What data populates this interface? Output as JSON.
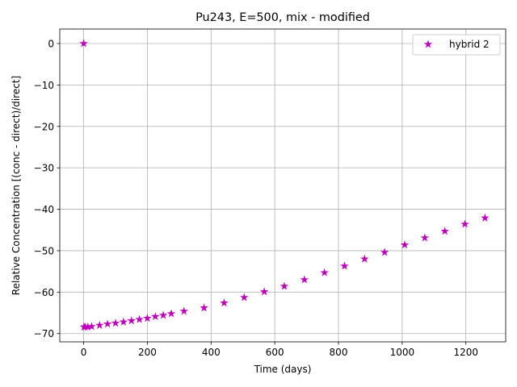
{
  "chart_data": {
    "type": "scatter",
    "title": "Pu243, E=500, mix - modified",
    "xlabel": "Time (days)",
    "ylabel": "Relative Concentration [(conc - direct)/direct]",
    "xlim": [
      -75,
      1325
    ],
    "ylim": [
      -72,
      3.5
    ],
    "xticks": [
      0,
      200,
      400,
      600,
      800,
      1000,
      1200
    ],
    "yticks": [
      0,
      -10,
      -20,
      -30,
      -40,
      -50,
      -60,
      -70
    ],
    "xtick_labels": [
      "0",
      "200",
      "400",
      "600",
      "800",
      "1000",
      "1200"
    ],
    "ytick_labels": [
      "0",
      "−10",
      "−20",
      "−30",
      "−40",
      "−50",
      "−60",
      "−70"
    ],
    "grid": true,
    "legend_position": "top-right",
    "series": [
      {
        "name": "hybrid 2",
        "color": "#bf00bf",
        "marker": "star",
        "x": [
          0,
          1,
          5,
          13,
          25,
          50,
          75,
          100,
          125,
          150,
          175,
          200,
          225,
          250,
          275,
          315,
          378,
          441,
          504,
          567,
          630,
          693,
          756,
          819,
          882,
          945,
          1008,
          1071,
          1134,
          1197,
          1260
        ],
        "y": [
          0,
          -68.4,
          -68.4,
          -68.4,
          -68.3,
          -68.0,
          -67.7,
          -67.5,
          -67.2,
          -66.9,
          -66.6,
          -66.3,
          -65.9,
          -65.6,
          -65.2,
          -64.6,
          -63.8,
          -62.6,
          -61.3,
          -59.9,
          -58.6,
          -57.0,
          -55.3,
          -53.7,
          -52.0,
          -50.4,
          -48.6,
          -46.9,
          -45.3,
          -43.6,
          -42.1
        ]
      }
    ]
  }
}
